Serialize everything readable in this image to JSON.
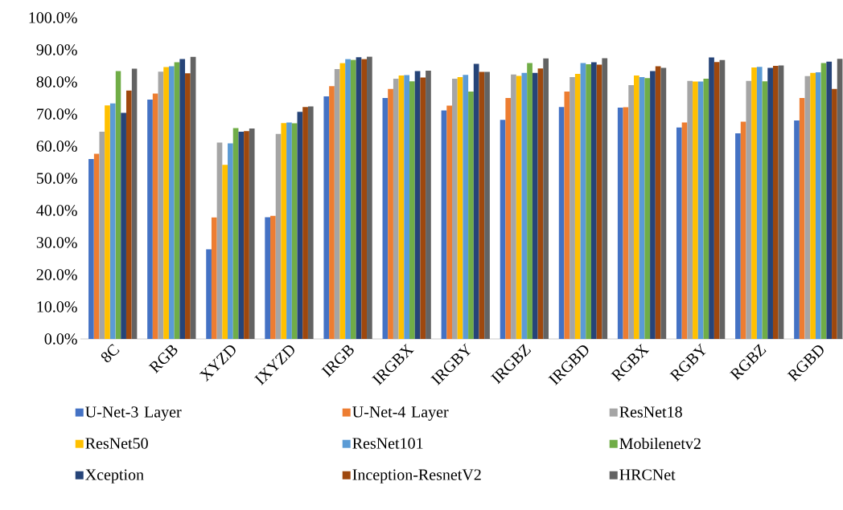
{
  "chart_data": {
    "type": "bar",
    "categories": [
      "8C",
      "RGB",
      "XYZD",
      "IXYZD",
      "IRGB",
      "IRGBX",
      "IRGBY",
      "IRGBZ",
      "IRGBD",
      "RGBX",
      "RGBY",
      "RGBZ",
      "RGBD"
    ],
    "ylim": [
      0,
      100
    ],
    "yticks": [
      {
        "value": 0,
        "label": "0.0%"
      },
      {
        "value": 10,
        "label": "10.0%"
      },
      {
        "value": 20,
        "label": "20.0%"
      },
      {
        "value": 30,
        "label": "30.0%"
      },
      {
        "value": 40,
        "label": "40.0%"
      },
      {
        "value": 50,
        "label": "50.0%"
      },
      {
        "value": 60,
        "label": "60.0%"
      },
      {
        "value": 70,
        "label": "70.0%"
      },
      {
        "value": 80,
        "label": "80.0%"
      },
      {
        "value": 90,
        "label": "90.0%"
      },
      {
        "value": 100,
        "label": "100.0%"
      }
    ],
    "legend": "bottom",
    "series": [
      {
        "name": "U-Net-3 Layer",
        "color": "#4472c4",
        "values": [
          56,
          74.5,
          27.9,
          37.9,
          75.5,
          75,
          71.1,
          68.2,
          72.2,
          72,
          65.8,
          64,
          68
        ]
      },
      {
        "name": "U-Net-4 Layer",
        "color": "#ed7d31",
        "values": [
          57.6,
          76.4,
          37.8,
          38.3,
          78.7,
          77.8,
          72.6,
          75,
          77,
          72.1,
          67.4,
          67.6,
          75
        ]
      },
      {
        "name": "ResNet18",
        "color": "#a5a5a5",
        "values": [
          64.5,
          83.2,
          61.1,
          63.8,
          84,
          81,
          81,
          82.3,
          81.5,
          79,
          80.3,
          80.3,
          81.8
        ]
      },
      {
        "name": "ResNet50",
        "color": "#ffc000",
        "values": [
          72.7,
          84.6,
          54.2,
          67.2,
          85.9,
          82,
          81.5,
          81.9,
          82.5,
          82,
          80.1,
          84.5,
          82.8
        ]
      },
      {
        "name": "ResNet101",
        "color": "#5b9bd5",
        "values": [
          73.3,
          84.9,
          60.9,
          67.4,
          87.1,
          82.1,
          82.2,
          82.8,
          85.9,
          81.5,
          80.1,
          84.7,
          83
        ]
      },
      {
        "name": "Mobilenetv2",
        "color": "#70ad47",
        "values": [
          83.4,
          86.1,
          65.6,
          67.1,
          86.9,
          80.2,
          77,
          85.9,
          85.5,
          81.2,
          81,
          80.2,
          85.9
        ]
      },
      {
        "name": "Xception",
        "color": "#264478",
        "values": [
          70.4,
          87.1,
          64.5,
          70.7,
          87.7,
          83.4,
          85.6,
          82.8,
          86.1,
          83.4,
          87.6,
          84.4,
          86.3
        ]
      },
      {
        "name": "Inception-ResnetV2",
        "color": "#9e480e",
        "values": [
          77.3,
          82.7,
          64.7,
          72.2,
          87.1,
          81.4,
          83.1,
          84.2,
          85.4,
          84.9,
          86.2,
          85,
          77.8
        ]
      },
      {
        "name": "HRCNet",
        "color": "#636363",
        "values": [
          84.1,
          87.8,
          65.5,
          72.4,
          87.9,
          83.5,
          83.1,
          87.3,
          87.4,
          84.4,
          86.8,
          85.1,
          87.2
        ]
      }
    ]
  }
}
